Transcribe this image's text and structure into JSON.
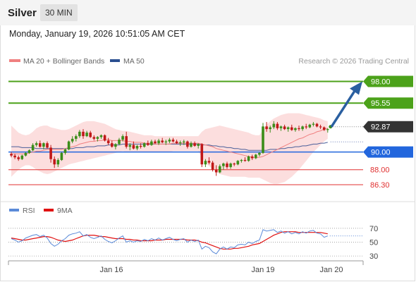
{
  "header": {
    "instrument": "Silver",
    "timeframe": "30 MIN"
  },
  "datetime": "Monday, January 19, 2026 10:51:05 AM CET",
  "credit": "Research © 2026 Trading Central",
  "legend": {
    "bollinger": "MA 20 + Bollinger Bands",
    "ma50": "MA 50",
    "rsi": "RSI",
    "rsi_ma": "9MA"
  },
  "colors": {
    "bull": "#3b8d1a",
    "bear": "#c01818",
    "band": "#fbd3d3",
    "ma20": "#f08080",
    "ma50": "#4a5f9a",
    "green_level": "#4ca21a",
    "blue_level": "#2266dd",
    "red_level": "#e03030",
    "arrow": "#2a5fa0",
    "current": "#333333",
    "rsi_line": "#5b8ad8",
    "rsi_ma_line": "#e01010"
  },
  "chart_data": [
    {
      "type": "candlestick",
      "ylim": [
        84.7,
        99.4
      ],
      "x_ticks": [
        "Jan 16",
        "Jan 19",
        "Jan 20"
      ],
      "levels": [
        {
          "value": 98.0,
          "label": "98.00",
          "style": "resistance"
        },
        {
          "value": 95.55,
          "label": "95.55",
          "style": "resistance"
        },
        {
          "value": 92.87,
          "label": "92.87",
          "style": "current"
        },
        {
          "value": 90.0,
          "label": "90.00",
          "style": "pivot"
        },
        {
          "value": 88.0,
          "label": "88.00",
          "style": "support"
        },
        {
          "value": 86.3,
          "label": "86.30",
          "style": "support"
        }
      ],
      "ohlc": [
        [
          89.8,
          90.0,
          89.4,
          89.6
        ],
        [
          89.6,
          89.8,
          89.2,
          89.4
        ],
        [
          89.4,
          89.6,
          89.0,
          89.2
        ],
        [
          89.2,
          89.7,
          89.1,
          89.6
        ],
        [
          89.6,
          90.0,
          89.5,
          89.9
        ],
        [
          89.9,
          90.3,
          89.8,
          90.2
        ],
        [
          90.2,
          91.0,
          90.1,
          90.8
        ],
        [
          90.8,
          91.2,
          90.6,
          91.0
        ],
        [
          91.0,
          91.3,
          90.5,
          90.6
        ],
        [
          90.6,
          91.1,
          90.3,
          91.0
        ],
        [
          91.0,
          91.2,
          90.4,
          90.5
        ],
        [
          90.5,
          90.8,
          88.8,
          89.2
        ],
        [
          89.2,
          89.5,
          88.2,
          88.6
        ],
        [
          88.6,
          89.3,
          88.3,
          89.1
        ],
        [
          89.1,
          90.0,
          89.0,
          89.9
        ],
        [
          89.9,
          90.4,
          89.7,
          90.3
        ],
        [
          90.3,
          91.3,
          90.2,
          91.2
        ],
        [
          91.2,
          91.8,
          91.0,
          91.5
        ],
        [
          91.5,
          92.0,
          91.2,
          91.8
        ],
        [
          91.8,
          92.5,
          91.6,
          92.3
        ],
        [
          92.3,
          92.6,
          91.5,
          91.8
        ],
        [
          91.8,
          92.4,
          91.7,
          92.2
        ],
        [
          92.2,
          92.4,
          91.6,
          91.7
        ],
        [
          91.7,
          91.9,
          91.3,
          91.5
        ],
        [
          91.5,
          91.8,
          91.2,
          91.7
        ],
        [
          91.7,
          92.0,
          91.5,
          91.9
        ],
        [
          91.9,
          92.0,
          91.2,
          91.3
        ],
        [
          91.3,
          91.6,
          90.8,
          91.0
        ],
        [
          91.0,
          91.3,
          90.5,
          90.6
        ],
        [
          90.6,
          91.0,
          90.3,
          90.9
        ],
        [
          90.9,
          91.6,
          90.8,
          91.4
        ],
        [
          91.4,
          92.0,
          91.2,
          91.8
        ],
        [
          91.8,
          92.3,
          90.4,
          90.6
        ],
        [
          90.6,
          91.0,
          90.2,
          90.8
        ],
        [
          90.8,
          91.2,
          90.3,
          90.4
        ],
        [
          90.4,
          90.8,
          90.2,
          90.7
        ],
        [
          90.7,
          91.0,
          90.4,
          90.6
        ],
        [
          90.6,
          91.1,
          90.5,
          91.0
        ],
        [
          91.0,
          91.3,
          90.7,
          90.8
        ],
        [
          90.8,
          91.4,
          90.7,
          91.2
        ],
        [
          91.2,
          91.4,
          90.9,
          91.0
        ],
        [
          91.0,
          91.5,
          90.8,
          91.3
        ],
        [
          91.3,
          91.6,
          91.0,
          91.1
        ],
        [
          91.1,
          91.4,
          90.8,
          91.2
        ],
        [
          91.2,
          91.6,
          91.0,
          91.4
        ],
        [
          91.4,
          91.6,
          91.1,
          91.2
        ],
        [
          91.2,
          91.4,
          90.9,
          91.0
        ],
        [
          91.0,
          91.3,
          90.7,
          91.1
        ],
        [
          91.1,
          91.4,
          90.8,
          91.2
        ],
        [
          91.2,
          91.3,
          90.4,
          90.6
        ],
        [
          90.6,
          91.2,
          90.5,
          91.0
        ],
        [
          91.0,
          91.2,
          90.6,
          90.7
        ],
        [
          90.7,
          91.0,
          90.4,
          90.9
        ],
        [
          90.9,
          91.0,
          88.3,
          88.6
        ],
        [
          88.6,
          89.2,
          88.3,
          89.0
        ],
        [
          89.0,
          89.4,
          88.6,
          88.8
        ],
        [
          88.8,
          89.0,
          87.8,
          88.0
        ],
        [
          88.0,
          88.5,
          87.3,
          87.7
        ],
        [
          87.7,
          88.6,
          87.6,
          88.4
        ],
        [
          88.4,
          88.8,
          88.0,
          88.7
        ],
        [
          88.7,
          88.9,
          88.1,
          88.3
        ],
        [
          88.3,
          88.8,
          88.1,
          88.7
        ],
        [
          88.7,
          88.8,
          88.4,
          88.6
        ],
        [
          88.6,
          89.1,
          88.5,
          89.0
        ],
        [
          89.0,
          89.2,
          88.8,
          89.1
        ],
        [
          89.1,
          89.4,
          88.9,
          89.0
        ],
        [
          89.0,
          89.6,
          88.9,
          89.5
        ],
        [
          89.5,
          89.7,
          89.1,
          89.3
        ],
        [
          89.3,
          89.8,
          89.2,
          89.7
        ],
        [
          89.7,
          90.0,
          89.5,
          89.9
        ],
        [
          89.9,
          93.3,
          89.8,
          92.9
        ],
        [
          92.9,
          93.4,
          92.3,
          92.6
        ],
        [
          92.6,
          93.0,
          92.2,
          92.8
        ],
        [
          92.8,
          93.5,
          92.6,
          93.2
        ],
        [
          93.2,
          93.4,
          92.5,
          92.7
        ],
        [
          92.7,
          93.0,
          92.4,
          92.9
        ],
        [
          92.9,
          93.1,
          92.5,
          92.6
        ],
        [
          92.6,
          92.9,
          92.3,
          92.8
        ],
        [
          92.8,
          93.1,
          92.4,
          92.5
        ],
        [
          92.5,
          92.8,
          92.3,
          92.7
        ],
        [
          92.7,
          93.0,
          92.4,
          92.6
        ],
        [
          92.6,
          93.0,
          92.4,
          92.9
        ],
        [
          92.9,
          93.2,
          92.6,
          92.8
        ],
        [
          92.8,
          93.2,
          92.7,
          93.1
        ],
        [
          93.1,
          93.4,
          92.9,
          93.2
        ],
        [
          93.2,
          93.3,
          92.8,
          92.9
        ],
        [
          92.9,
          93.1,
          92.6,
          92.8
        ],
        [
          92.8,
          92.9,
          92.4,
          92.5
        ],
        [
          92.5,
          92.7,
          92.2,
          92.6
        ]
      ],
      "ma20": [
        89.8,
        89.8,
        89.8,
        89.8,
        89.8,
        89.9,
        90.0,
        90.1,
        90.1,
        90.2,
        90.3,
        90.3,
        90.3,
        90.3,
        90.3,
        90.4,
        90.5,
        90.6,
        90.7,
        90.9,
        91.0,
        91.1,
        91.2,
        91.2,
        91.3,
        91.3,
        91.4,
        91.4,
        91.3,
        91.3,
        91.3,
        91.3,
        91.2,
        91.2,
        91.1,
        91.1,
        91.1,
        91.0,
        91.0,
        91.0,
        90.9,
        90.9,
        90.9,
        90.9,
        90.9,
        91.0,
        91.0,
        91.0,
        91.0,
        91.0,
        91.0,
        91.0,
        91.0,
        90.9,
        90.8,
        90.7,
        90.6,
        90.4,
        90.3,
        90.2,
        90.1,
        90.0,
        89.9,
        89.8,
        89.7,
        89.6,
        89.5,
        89.4,
        89.4,
        89.4,
        89.5,
        89.7,
        89.9,
        90.1,
        90.3,
        90.5,
        90.7,
        90.9,
        91.1,
        91.3,
        91.5,
        91.6,
        91.8,
        92.0,
        92.1,
        92.3,
        92.4,
        92.6,
        92.7
      ],
      "ma50": [
        90.6,
        90.6,
        90.6,
        90.5,
        90.5,
        90.5,
        90.5,
        90.4,
        90.4,
        90.4,
        90.4,
        90.4,
        90.4,
        90.4,
        90.4,
        90.4,
        90.4,
        90.4,
        90.5,
        90.5,
        90.5,
        90.6,
        90.6,
        90.6,
        90.7,
        90.7,
        90.7,
        90.8,
        90.8,
        90.8,
        90.8,
        90.9,
        90.9,
        90.9,
        90.9,
        90.9,
        90.9,
        90.9,
        90.9,
        90.9,
        90.9,
        90.9,
        90.9,
        90.9,
        90.9,
        90.9,
        90.9,
        90.9,
        90.9,
        90.9,
        90.9,
        90.9,
        90.9,
        90.8,
        90.8,
        90.8,
        90.7,
        90.7,
        90.6,
        90.6,
        90.5,
        90.5,
        90.4,
        90.4,
        90.3,
        90.3,
        90.2,
        90.2,
        90.2,
        90.2,
        90.2,
        90.2,
        90.3,
        90.3,
        90.3,
        90.4,
        90.4,
        90.5,
        90.5,
        90.6,
        90.6,
        90.7,
        90.7,
        90.8,
        90.9,
        90.9,
        91.0,
        91.0,
        91.1
      ],
      "bb_upper": [
        93.0,
        92.6,
        92.2,
        92.0,
        91.9,
        92.0,
        92.3,
        92.7,
        92.9,
        93.0,
        93.0,
        92.8,
        92.7,
        92.6,
        92.5,
        92.5,
        92.6,
        92.8,
        93.0,
        93.2,
        93.4,
        93.5,
        93.5,
        93.5,
        93.4,
        93.3,
        93.2,
        93.0,
        92.8,
        92.6,
        92.5,
        92.4,
        92.4,
        92.3,
        92.2,
        92.1,
        92.0,
        91.9,
        91.9,
        91.9,
        91.8,
        91.8,
        91.8,
        91.8,
        91.8,
        91.8,
        91.8,
        91.8,
        91.8,
        91.8,
        91.8,
        91.8,
        91.8,
        92.3,
        92.6,
        92.7,
        92.8,
        92.9,
        93.0,
        92.9,
        92.8,
        92.7,
        92.6,
        92.5,
        92.4,
        92.3,
        92.2,
        92.0,
        91.9,
        91.9,
        92.5,
        93.1,
        93.5,
        93.8,
        94.0,
        94.2,
        94.3,
        94.4,
        94.4,
        94.4,
        94.4,
        94.3,
        94.2,
        94.1,
        94.0,
        93.9,
        93.8,
        93.6,
        93.5
      ],
      "bb_lower": [
        87.2,
        87.6,
        88.0,
        88.3,
        88.5,
        88.5,
        88.3,
        88.0,
        87.8,
        87.6,
        87.5,
        87.6,
        87.8,
        88.0,
        88.2,
        88.4,
        88.6,
        88.7,
        88.8,
        88.9,
        89.0,
        89.1,
        89.2,
        89.3,
        89.4,
        89.5,
        89.6,
        89.7,
        89.8,
        89.9,
        90.0,
        90.1,
        90.0,
        90.0,
        90.0,
        90.0,
        90.0,
        90.0,
        90.0,
        90.0,
        90.0,
        90.0,
        90.0,
        90.0,
        90.0,
        90.1,
        90.1,
        90.1,
        90.1,
        90.1,
        90.1,
        90.1,
        90.1,
        89.4,
        88.8,
        88.4,
        88.1,
        87.8,
        87.5,
        87.4,
        87.3,
        87.2,
        87.2,
        87.2,
        87.2,
        87.2,
        87.1,
        87.1,
        87.1,
        87.1,
        86.9,
        86.7,
        86.5,
        86.4,
        86.4,
        86.5,
        86.6,
        86.9,
        87.2,
        87.6,
        88.0,
        88.5,
        89.0,
        89.5,
        90.0,
        90.4,
        90.8,
        91.2,
        91.5
      ],
      "forecast_from": 92.87,
      "forecast_to": 98.0
    },
    {
      "type": "line",
      "name": "RSI",
      "ylim": [
        25,
        80
      ],
      "y_ticks": [
        70,
        50,
        30
      ],
      "rsi": [
        55,
        53,
        50,
        52,
        56,
        58,
        60,
        61,
        58,
        60,
        56,
        48,
        44,
        47,
        52,
        55,
        60,
        62,
        63,
        65,
        59,
        61,
        57,
        55,
        57,
        59,
        54,
        51,
        49,
        52,
        56,
        59,
        50,
        52,
        50,
        52,
        51,
        54,
        52,
        55,
        53,
        56,
        53,
        55,
        57,
        54,
        52,
        54,
        55,
        50,
        53,
        51,
        53,
        40,
        44,
        42,
        36,
        33,
        40,
        43,
        40,
        43,
        42,
        46,
        47,
        46,
        50,
        48,
        51,
        53,
        68,
        66,
        67,
        68,
        64,
        66,
        63,
        65,
        62,
        64,
        62,
        65,
        63,
        66,
        67,
        63,
        62,
        57,
        59
      ],
      "rsi_ma": [
        56,
        55,
        54,
        53,
        53,
        54,
        55,
        56,
        57,
        58,
        58,
        57,
        55,
        53,
        52,
        51,
        52,
        53,
        55,
        57,
        59,
        60,
        60,
        60,
        59,
        58,
        58,
        57,
        56,
        55,
        55,
        55,
        54,
        54,
        53,
        53,
        52,
        52,
        52,
        52,
        53,
        53,
        53,
        54,
        54,
        54,
        54,
        54,
        54,
        53,
        53,
        53,
        52,
        50,
        49,
        47,
        45,
        43,
        41,
        40,
        40,
        40,
        41,
        41,
        42,
        43,
        44,
        46,
        47,
        48,
        51,
        54,
        57,
        60,
        62,
        64,
        65,
        65,
        65,
        65,
        64,
        64,
        64,
        64,
        64,
        64,
        64,
        63,
        62
      ]
    }
  ]
}
